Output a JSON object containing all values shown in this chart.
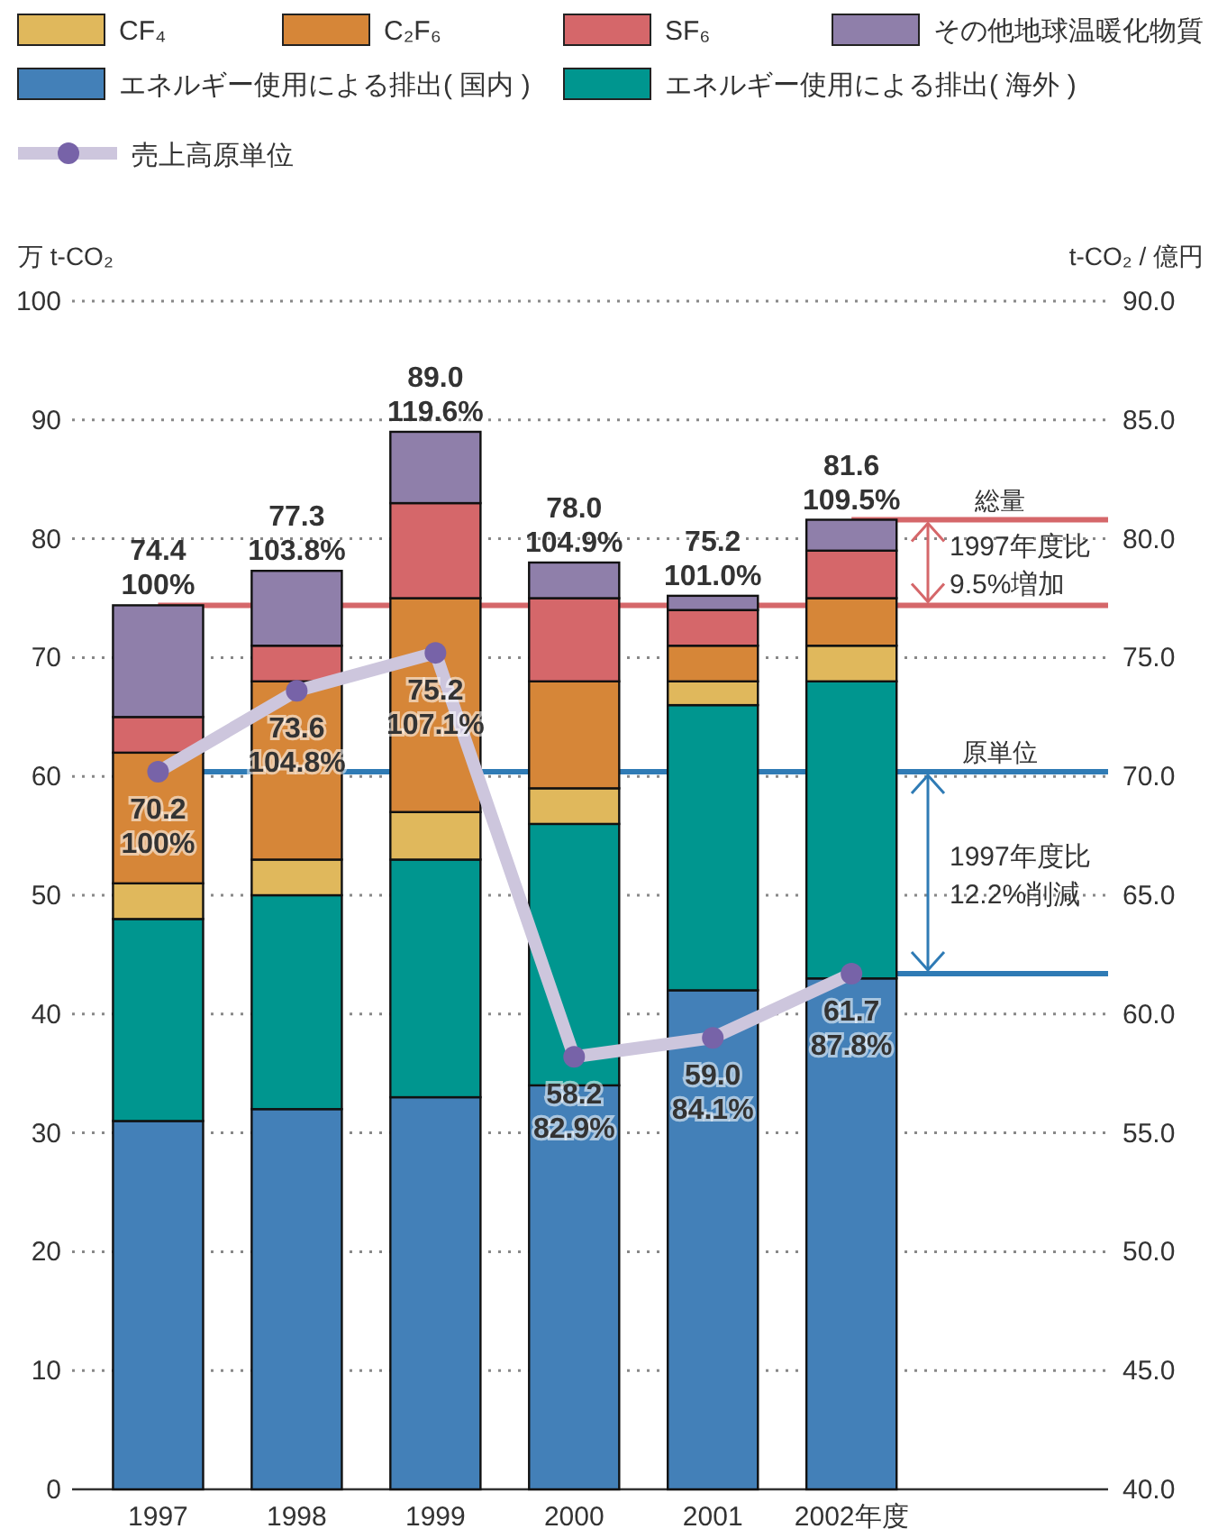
{
  "chart_data": {
    "type": "bar",
    "stacked": true,
    "categories": [
      "1997",
      "1998",
      "1999",
      "2000",
      "2001",
      "2002年度"
    ],
    "ylabel": "万 t-CO₂",
    "y2label": "t-CO₂ / 億円",
    "ylim": [
      0,
      100
    ],
    "yticks": [
      0,
      10,
      20,
      30,
      40,
      50,
      60,
      70,
      80,
      90,
      100
    ],
    "y2lim": [
      40,
      90
    ],
    "y2ticks": [
      {
        "value": 40,
        "label": "40.0"
      },
      {
        "value": 45,
        "label": "45.0"
      },
      {
        "value": 50,
        "label": "50.0"
      },
      {
        "value": 55,
        "label": "55.0"
      },
      {
        "value": 60,
        "label": "60.0"
      },
      {
        "value": 65,
        "label": "65.0"
      },
      {
        "value": 70,
        "label": "70.0"
      },
      {
        "value": 75,
        "label": "75.0"
      },
      {
        "value": 80,
        "label": "80.0"
      },
      {
        "value": 85,
        "label": "85.0"
      },
      {
        "value": 90,
        "label": "90.0"
      }
    ],
    "grid": "y",
    "legend": "top",
    "marker": "circle",
    "series": [
      {
        "name": "エネルギー使用による排出( 国内 )",
        "color": "#4380b8",
        "values": [
          31,
          32,
          33,
          34,
          42,
          43
        ]
      },
      {
        "name": "エネルギー使用による排出( 海外 )",
        "color": "#00968f",
        "values": [
          17,
          18,
          20,
          22,
          24,
          25
        ]
      },
      {
        "name": "CF₄",
        "color": "#e0b85c",
        "values": [
          3,
          3,
          4,
          3,
          2,
          3
        ]
      },
      {
        "name": "C₂F₆",
        "color": "#d68638",
        "values": [
          11,
          15,
          18,
          9,
          3,
          4
        ]
      },
      {
        "name": "SF₆",
        "color": "#d5676a",
        "values": [
          3,
          3,
          8,
          7,
          3,
          4
        ]
      },
      {
        "name": "その他地球温暖化物質",
        "color": "#8f7faa",
        "values": [
          9.4,
          6.3,
          6,
          3,
          1.2,
          2.6
        ]
      },
      {
        "name": "売上高原単位",
        "type": "line",
        "axis": "y2",
        "color": "#cdc6dd",
        "values": [
          70.2,
          73.6,
          75.2,
          58.2,
          59.0,
          61.7
        ],
        "value_labels": [
          "70.2",
          "73.6",
          "75.2",
          "58.2",
          "59.0",
          "61.7"
        ]
      }
    ],
    "totals": [
      "74.4",
      "77.3",
      "89.0",
      "78.0",
      "75.2",
      "81.6"
    ],
    "ref_lines": [
      {
        "axis": "y",
        "value": 81.6,
        "label": "総量",
        "color": "#d5676a"
      },
      {
        "axis": "y",
        "value": 74.4,
        "label": null,
        "color": "#d5676a"
      },
      {
        "axis": "y2",
        "value": 70.2,
        "label": "原単位",
        "color": "#2f7bb5"
      },
      {
        "axis": "y2",
        "value": 61.7,
        "label": null,
        "color": "#2f7bb5"
      }
    ],
    "annotations": [
      "1997年度比\n9.5%増加",
      "1997年度比\n12.2%削減",
      {
        "text": "100%",
        "x": "1997",
        "y": 74.4
      },
      {
        "text": "103.8%",
        "x": "1998",
        "y": 77.3
      },
      {
        "text": "119.6%",
        "x": "1999",
        "y": 89.0
      },
      {
        "text": "104.9%",
        "x": "2000",
        "y": 78.0
      },
      {
        "text": "101.0%",
        "x": "2001",
        "y": 75.2
      },
      {
        "text": "109.5%",
        "x": "2002年度",
        "y": 81.6
      },
      "100%",
      "104.8%",
      "107.1%",
      "82.9%",
      "84.1%",
      "87.8%"
    ]
  }
}
